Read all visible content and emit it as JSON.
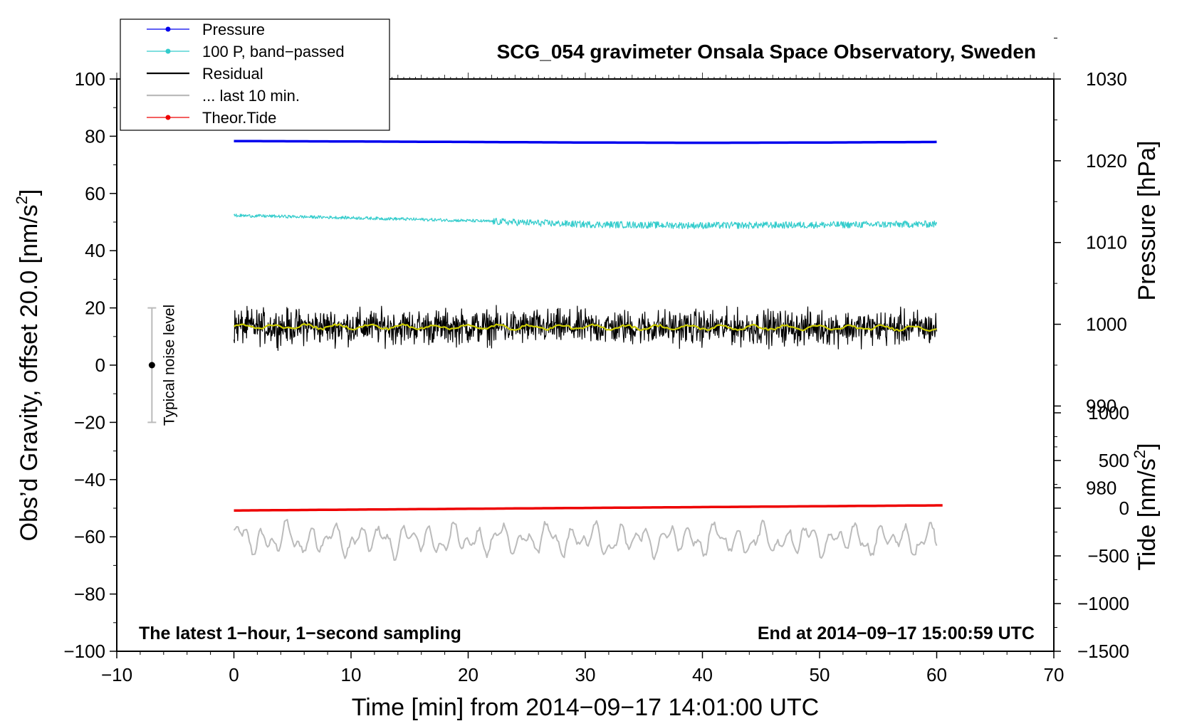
{
  "chart_data": {
    "type": "line",
    "title": "SCG_054 gravimeter Onsala Space Observatory, Sweden",
    "xlabel": "Time [min] from 2014−09−17 14:01:00 UTC",
    "ylabel_left": "Obs’d Gravity, offset 20.0 [nm/s",
    "ylabel_left_sup": "2",
    "ylabel_left_close": "]",
    "ylabel_right_pressure": "Pressure [hPa]",
    "ylabel_right_tide": "Tide [nm/s",
    "ylabel_right_tide_sup": "2",
    "ylabel_right_tide_close": "]",
    "xlim": [
      -10,
      70
    ],
    "ylim": [
      -100,
      100
    ],
    "pressure_axis_range": [
      960,
      1030
    ],
    "tide_axis_range": [
      -1500,
      1000
    ],
    "x_ticks": [
      "−10",
      "0",
      "10",
      "20",
      "30",
      "40",
      "50",
      "60",
      "70"
    ],
    "x_tick_values": [
      -10,
      0,
      10,
      20,
      30,
      40,
      50,
      60,
      70
    ],
    "y_ticks": [
      "100",
      "80",
      "60",
      "40",
      "20",
      "0",
      "−20",
      "−40",
      "−60",
      "−80",
      "−100"
    ],
    "y_tick_values": [
      100,
      80,
      60,
      40,
      20,
      0,
      -20,
      -40,
      -60,
      -80,
      -100
    ],
    "pressure_ticks": [
      "1030",
      "1020",
      "1010",
      "1000",
      "990",
      "980"
    ],
    "pressure_tick_values": [
      1030,
      1020,
      1010,
      1000,
      990,
      980
    ],
    "tide_ticks": [
      "1000",
      "500",
      "0",
      "−500",
      "−1000",
      "−1500"
    ],
    "tide_tick_values": [
      1000,
      500,
      0,
      -500,
      -1000,
      -1500
    ],
    "legend": [
      {
        "label": "Pressure",
        "color": "#0000ee",
        "marker": true
      },
      {
        "label": "100 P, band−passed",
        "color": "#33cccc",
        "marker": true
      },
      {
        "label": "Residual",
        "color": "#000000",
        "marker": false
      },
      {
        "label": "... last 10 min.",
        "color": "#bbbbbb",
        "marker": false
      },
      {
        "label": "Theor.Tide",
        "color": "#ee0000",
        "marker": true
      }
    ],
    "legend_position": "top-left",
    "noise_label": "Typical noise level",
    "noise_bar": {
      "x": -7,
      "center": 0,
      "low": -20,
      "high": 20
    },
    "note_left": "The latest 1−hour, 1−second sampling",
    "note_right": "End at 2014−09−17 15:00:59 UTC",
    "series": [
      {
        "name": "Pressure",
        "color": "#0000ee",
        "x": [
          0,
          8,
          20,
          30,
          40,
          50,
          60
        ],
        "values": [
          78.3,
          78.2,
          78.0,
          77.8,
          77.7,
          77.8,
          78.0
        ]
      },
      {
        "name": "100 P, band−passed",
        "color": "#33cccc",
        "x": [
          0,
          10,
          20,
          25,
          30,
          40,
          50,
          60
        ],
        "values": [
          52.3,
          51.5,
          50.5,
          49.8,
          49.2,
          48.8,
          49.0,
          49.3
        ],
        "noise_amplitude": 1.2
      },
      {
        "name": "Residual",
        "color": "#000000",
        "x": [
          0,
          60
        ],
        "values": [
          13.5,
          13.0
        ],
        "noise_amplitude": 5.5
      },
      {
        "name": "Residual smoothed",
        "color": "#cccc00",
        "x": [
          0,
          60
        ],
        "values": [
          13.5,
          13.0
        ]
      },
      {
        "name": "... last 10 min.",
        "color": "#bbbbbb",
        "x": [
          0,
          60
        ],
        "values": [
          -61,
          -61
        ],
        "noise_amplitude": 5
      },
      {
        "name": "Theor.Tide",
        "color": "#ee0000",
        "x": [
          0,
          60.5
        ],
        "values": [
          -50.8,
          -49.0
        ]
      }
    ]
  }
}
